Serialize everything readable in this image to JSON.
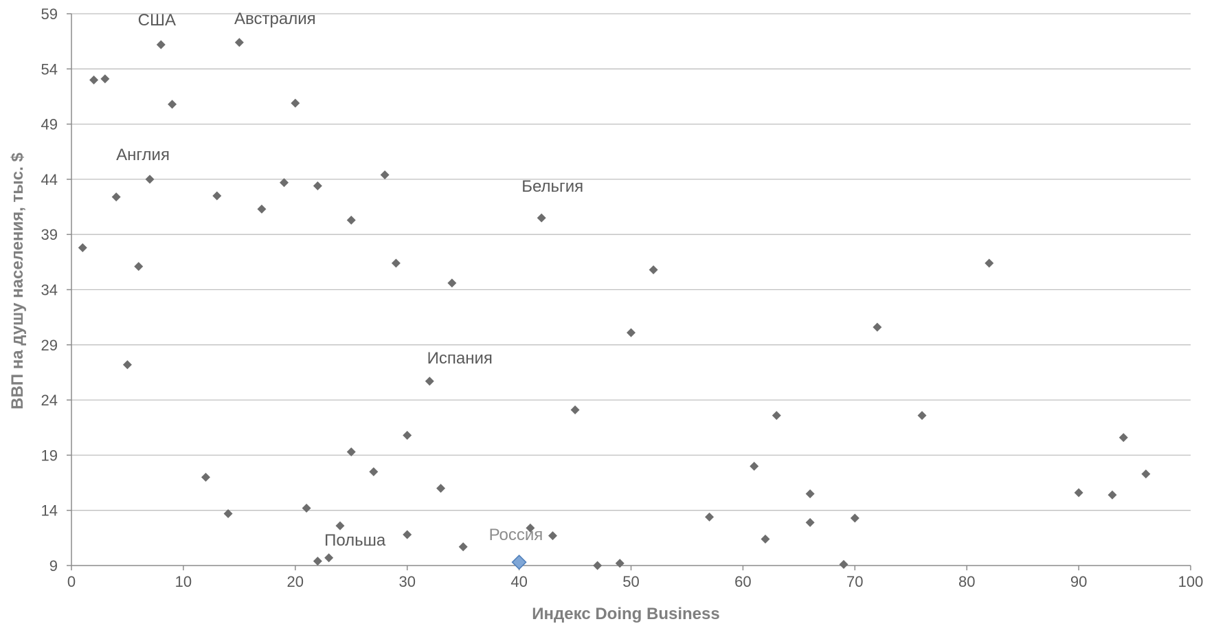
{
  "chart_data": {
    "type": "scatter",
    "title": "",
    "xlabel": "Индекс Doing Business",
    "ylabel": "ВВП на душу населения, тыс. $",
    "xlim": [
      0,
      100
    ],
    "ylim": [
      9,
      59
    ],
    "xticks": [
      0,
      10,
      20,
      30,
      40,
      50,
      60,
      70,
      80,
      90,
      100
    ],
    "yticks": [
      9,
      14,
      19,
      24,
      29,
      34,
      39,
      44,
      49,
      54,
      59
    ],
    "grid": "horizontal",
    "colors": {
      "points": "#6d6d6d",
      "highlight": "#7fa6d6",
      "highlight_stroke": "#4f7fba",
      "grid": "#bfbfbf",
      "axis": "#8c8c8c",
      "tick_text": "#595959",
      "title_text": "#7f7f7f"
    },
    "series": [
      {
        "points": [
          {
            "x": 1,
            "y": 37.8
          },
          {
            "x": 2,
            "y": 53.0
          },
          {
            "x": 3,
            "y": 53.1
          },
          {
            "x": 4,
            "y": 42.4
          },
          {
            "x": 5,
            "y": 27.2
          },
          {
            "x": 6,
            "y": 36.1
          },
          {
            "x": 7,
            "y": 44.0
          },
          {
            "x": 8,
            "y": 56.2
          },
          {
            "x": 9,
            "y": 50.8
          },
          {
            "x": 12,
            "y": 17.0
          },
          {
            "x": 13,
            "y": 42.5
          },
          {
            "x": 14,
            "y": 13.7
          },
          {
            "x": 15,
            "y": 56.4
          },
          {
            "x": 17,
            "y": 41.3
          },
          {
            "x": 19,
            "y": 43.7
          },
          {
            "x": 20,
            "y": 50.9
          },
          {
            "x": 21,
            "y": 14.2
          },
          {
            "x": 22,
            "y": 43.4
          },
          {
            "x": 22,
            "y": 9.4
          },
          {
            "x": 23,
            "y": 9.7
          },
          {
            "x": 24,
            "y": 12.6
          },
          {
            "x": 25,
            "y": 40.3
          },
          {
            "x": 25,
            "y": 19.3
          },
          {
            "x": 27,
            "y": 17.5
          },
          {
            "x": 28,
            "y": 44.4
          },
          {
            "x": 29,
            "y": 36.4
          },
          {
            "x": 30,
            "y": 20.8
          },
          {
            "x": 30,
            "y": 11.8
          },
          {
            "x": 32,
            "y": 25.7
          },
          {
            "x": 33,
            "y": 16.0
          },
          {
            "x": 34,
            "y": 34.6
          },
          {
            "x": 35,
            "y": 10.7
          },
          {
            "x": 41,
            "y": 12.4
          },
          {
            "x": 42,
            "y": 40.5
          },
          {
            "x": 43,
            "y": 11.7
          },
          {
            "x": 45,
            "y": 23.1
          },
          {
            "x": 47,
            "y": 9.0
          },
          {
            "x": 49,
            "y": 9.2
          },
          {
            "x": 50,
            "y": 30.1
          },
          {
            "x": 52,
            "y": 35.8
          },
          {
            "x": 57,
            "y": 13.4
          },
          {
            "x": 61,
            "y": 18.0
          },
          {
            "x": 62,
            "y": 11.4
          },
          {
            "x": 63,
            "y": 22.6
          },
          {
            "x": 66,
            "y": 15.5
          },
          {
            "x": 66,
            "y": 12.9
          },
          {
            "x": 69,
            "y": 9.1
          },
          {
            "x": 70,
            "y": 13.3
          },
          {
            "x": 72,
            "y": 30.6
          },
          {
            "x": 76,
            "y": 22.6
          },
          {
            "x": 82,
            "y": 36.4
          },
          {
            "x": 90,
            "y": 15.6
          },
          {
            "x": 93,
            "y": 15.4
          },
          {
            "x": 94,
            "y": 20.6
          },
          {
            "x": 96,
            "y": 17.3
          }
        ]
      },
      {
        "highlight": true,
        "points": [
          {
            "x": 40,
            "y": 9.3
          }
        ]
      }
    ],
    "annotations": [
      {
        "text": "США",
        "x": 8,
        "y": 56.2
      },
      {
        "text": "Австралия",
        "x": 15,
        "y": 56.4
      },
      {
        "text": "Англия",
        "x": 7,
        "y": 44.0
      },
      {
        "text": "Бельгия",
        "x": 42,
        "y": 40.5
      },
      {
        "text": "Испания",
        "x": 32,
        "y": 25.7
      },
      {
        "text": "Польша",
        "x": 23,
        "y": 9.7
      },
      {
        "text": "Россия",
        "x": 40,
        "y": 9.3
      }
    ]
  }
}
